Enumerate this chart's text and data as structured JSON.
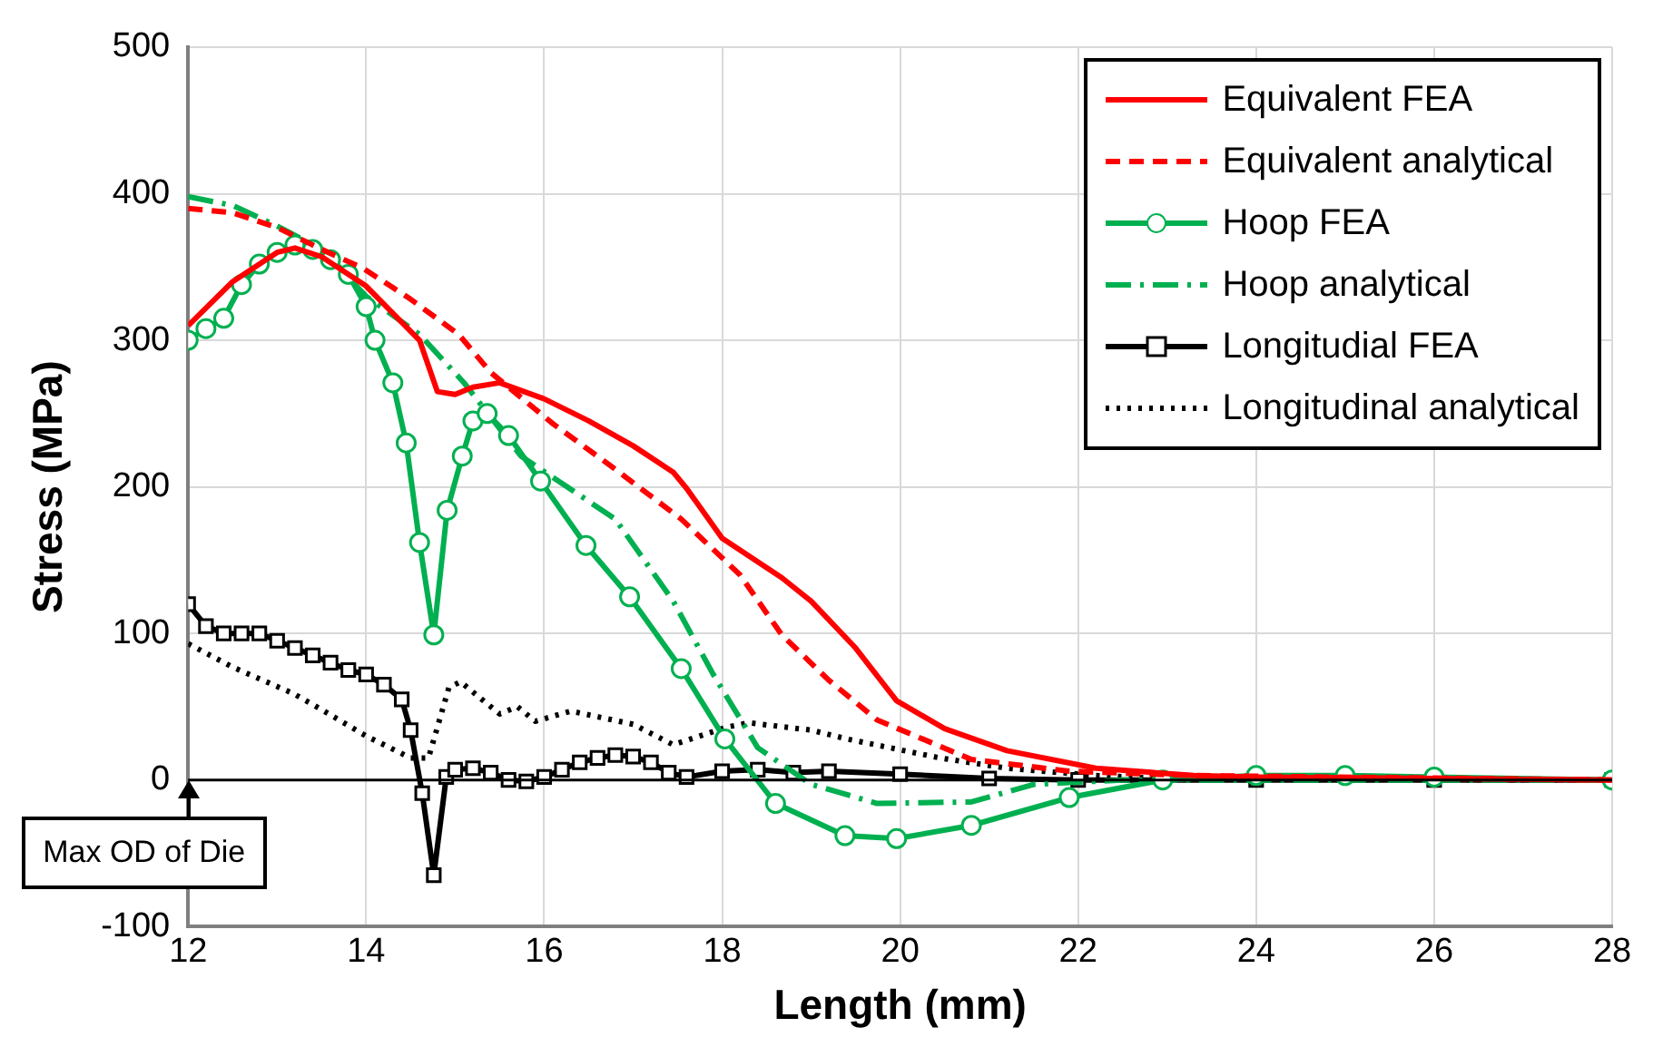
{
  "chart_data": {
    "type": "line",
    "xlabel": "Length (mm)",
    "ylabel": "Stress (MPa)",
    "xlim": [
      12,
      28
    ],
    "xticks": [
      12,
      14,
      16,
      18,
      20,
      22,
      24,
      26,
      28
    ],
    "ylim": [
      -100,
      500
    ],
    "yticks": [
      -100,
      0,
      100,
      200,
      300,
      400,
      500
    ],
    "grid": true,
    "legend": "top right",
    "annotations": [
      "Max OD of Die"
    ],
    "series": [
      {
        "name": "Equivalent FEA",
        "color": "#ff0000",
        "line_style": "solid",
        "marker": "none",
        "x": [
          12,
          12.5,
          13,
          13.2,
          13.5,
          14,
          14.6,
          14.8,
          15,
          15.2,
          15.5,
          16,
          16.5,
          17,
          17.45,
          17.6,
          18,
          18.67,
          19,
          19.5,
          19.96,
          20.5,
          21.2,
          22.2,
          23.3,
          24,
          28
        ],
        "values": [
          310,
          340,
          360,
          363,
          357,
          337,
          300,
          265,
          263,
          268,
          271,
          260,
          245,
          228,
          210,
          199,
          165,
          138,
          122,
          90,
          54,
          35,
          20,
          8,
          3,
          2,
          0
        ]
      },
      {
        "name": "Equivalent  analytical",
        "color": "#ff0000",
        "line_style": "dashed",
        "marker": "none",
        "x": [
          12,
          12.5,
          13,
          13.5,
          13.97,
          14.5,
          15.04,
          15.4,
          16.1,
          16.8,
          17.54,
          18.2,
          18.67,
          19.2,
          19.74,
          20.8,
          21.9,
          23.3,
          28
        ],
        "values": [
          390,
          387,
          377,
          362,
          349,
          328,
          304,
          278,
          243,
          212,
          178,
          140,
          99,
          68,
          41,
          14,
          6,
          3,
          0
        ]
      },
      {
        "name": "Hoop FEA",
        "color": "#00b050",
        "line_style": "solid",
        "marker": "circle",
        "x": [
          12,
          12.2,
          12.4,
          12.6,
          12.8,
          13,
          13.2,
          13.4,
          13.6,
          13.8,
          14,
          14.1,
          14.3,
          14.45,
          14.6,
          14.76,
          14.91,
          15.08,
          15.2,
          15.36,
          15.6,
          15.96,
          16.47,
          16.96,
          17.54,
          18.03,
          18.6,
          19.38,
          19.96,
          20.8,
          21.9,
          22.95,
          24,
          25,
          26,
          28
        ],
        "values": [
          300,
          308,
          315,
          338,
          352,
          360,
          365,
          362,
          355,
          345,
          323,
          300,
          271,
          230,
          162,
          99,
          184,
          221,
          245,
          250,
          235,
          204,
          160,
          125,
          76,
          28,
          -16,
          -38,
          -40,
          -31,
          -12,
          0,
          3,
          3,
          2,
          0
        ]
      },
      {
        "name": "Hoop analytical",
        "color": "#00b050",
        "line_style": "dashdot",
        "marker": "none",
        "x": [
          12,
          12.5,
          13,
          13.5,
          14,
          14.6,
          15.1,
          15.74,
          16.8,
          17.45,
          17.9,
          18.4,
          19,
          19.74,
          20.8,
          21.5,
          22.5,
          28
        ],
        "values": [
          398,
          392,
          378,
          362,
          330,
          304,
          271,
          221,
          178,
          122,
          72,
          22,
          -3,
          -16,
          -15,
          -3,
          0,
          0
        ]
      },
      {
        "name": "Longitudial FEA",
        "color": "#000000",
        "line_style": "solid",
        "marker": "square",
        "x": [
          12,
          12.2,
          12.4,
          12.6,
          12.8,
          13,
          13.2,
          13.4,
          13.6,
          13.8,
          14,
          14.2,
          14.4,
          14.5,
          14.63,
          14.76,
          14.9,
          15,
          15.2,
          15.4,
          15.6,
          15.8,
          16,
          16.2,
          16.4,
          16.6,
          16.8,
          17,
          17.2,
          17.4,
          17.6,
          18,
          18.4,
          18.8,
          19.2,
          20,
          21,
          22,
          24,
          26,
          28
        ],
        "values": [
          120,
          105,
          100,
          100,
          100,
          95,
          90,
          85,
          80,
          75,
          72,
          65,
          55,
          34,
          -9,
          -65,
          2,
          7,
          8,
          5,
          0,
          -1,
          2,
          7,
          12,
          15,
          17,
          16,
          12,
          5,
          2,
          6,
          7,
          5,
          6,
          4,
          1,
          0,
          0,
          0,
          0
        ]
      },
      {
        "name": "Longitudinal analytical",
        "color": "#000000",
        "line_style": "dotted",
        "marker": "none",
        "x": [
          12,
          12.5,
          13.18,
          13.5,
          14,
          14.5,
          14.7,
          14.93,
          15.06,
          15.3,
          15.5,
          15.7,
          15.9,
          16.3,
          17,
          17.45,
          18.05,
          18.3,
          19,
          19.4,
          20.45,
          21.2,
          22.2,
          23,
          28
        ],
        "values": [
          93,
          77,
          59,
          48,
          30,
          15,
          15,
          63,
          67,
          55,
          45,
          50,
          40,
          47,
          38,
          24,
          36,
          39,
          34,
          28,
          15,
          8,
          3,
          1,
          0
        ]
      }
    ]
  }
}
